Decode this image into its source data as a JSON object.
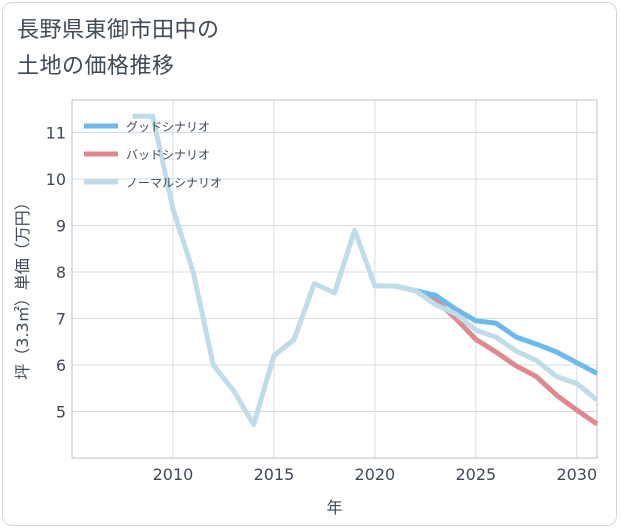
{
  "title_line1": "長野県東御市田中の",
  "title_line2": "土地の価格推移",
  "chart_data": {
    "type": "line",
    "xlabel": "年",
    "ylabel": "坪（3.3㎡）単価（万円）",
    "xlim": [
      2005,
      2031
    ],
    "ylim": [
      4.0,
      11.7
    ],
    "xticks": [
      2010,
      2015,
      2020,
      2025,
      2030
    ],
    "yticks": [
      5,
      6,
      7,
      8,
      9,
      10,
      11
    ],
    "grid": true,
    "legend_position": "top-left",
    "series": [
      {
        "name": "グッドシナリオ",
        "color": "#6bbaec",
        "points": [
          [
            2020,
            7.7
          ],
          [
            2021,
            7.7
          ],
          [
            2022,
            7.6
          ],
          [
            2023,
            7.5
          ],
          [
            2024,
            7.2
          ],
          [
            2025,
            6.95
          ],
          [
            2026,
            6.9
          ],
          [
            2027,
            6.6
          ],
          [
            2028,
            6.45
          ],
          [
            2029,
            6.28
          ],
          [
            2030,
            6.05
          ],
          [
            2031,
            5.82
          ]
        ]
      },
      {
        "name": "バッドシナリオ",
        "color": "#e0888f",
        "points": [
          [
            2020,
            7.7
          ],
          [
            2021,
            7.7
          ],
          [
            2022,
            7.6
          ],
          [
            2023,
            7.4
          ],
          [
            2024,
            7.0
          ],
          [
            2025,
            6.55
          ],
          [
            2026,
            6.28
          ],
          [
            2027,
            5.98
          ],
          [
            2028,
            5.75
          ],
          [
            2029,
            5.35
          ],
          [
            2030,
            5.03
          ],
          [
            2031,
            4.73
          ]
        ]
      },
      {
        "name": "ノーマルシナリオ",
        "color": "#bfdcea",
        "points": [
          [
            2008,
            11.35
          ],
          [
            2009,
            11.35
          ],
          [
            2010,
            9.35
          ],
          [
            2011,
            8.0
          ],
          [
            2012,
            6.0
          ],
          [
            2013,
            5.45
          ],
          [
            2014,
            4.72
          ],
          [
            2015,
            6.2
          ],
          [
            2016,
            6.55
          ],
          [
            2017,
            7.75
          ],
          [
            2018,
            7.55
          ],
          [
            2019,
            8.9
          ],
          [
            2020,
            7.7
          ],
          [
            2021,
            7.7
          ],
          [
            2022,
            7.6
          ],
          [
            2023,
            7.3
          ],
          [
            2024,
            7.1
          ],
          [
            2025,
            6.75
          ],
          [
            2026,
            6.6
          ],
          [
            2027,
            6.3
          ],
          [
            2028,
            6.1
          ],
          [
            2029,
            5.75
          ],
          [
            2030,
            5.6
          ],
          [
            2031,
            5.25
          ]
        ]
      }
    ]
  }
}
